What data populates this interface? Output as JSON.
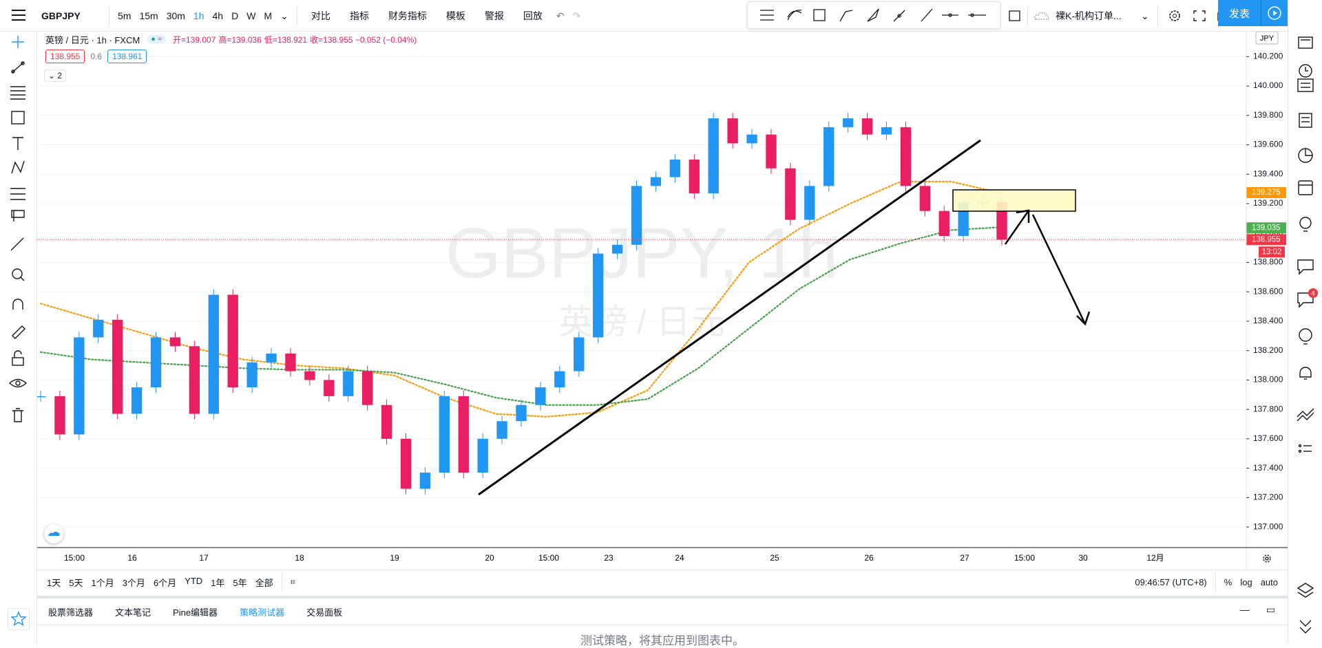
{
  "top_toolbar": {
    "symbol": "GBPJPY",
    "intervals": [
      "5m",
      "15m",
      "30m",
      "1h",
      "4h",
      "D",
      "W",
      "M"
    ],
    "items": [
      "对比",
      "指标",
      "财务指标",
      "模板",
      "警报",
      "回放"
    ],
    "layout_name": "裸K-机构订单...",
    "publish": "发表"
  },
  "legend": {
    "symbol": "英镑 / 日元 · 1h · FXCM",
    "ohlc": [
      "开=139.007",
      "高=139.036",
      "低=138.921",
      "收=138.955 −0.052 (−0.04%)"
    ],
    "bid": "138.955",
    "spread": "0.6",
    "ask": "138.961",
    "collapse": "2"
  },
  "watermark": {
    "line1": "GBPJPY, 1h",
    "line2": "英镑 / 日元"
  },
  "chart_data": {
    "type": "candlestick",
    "currency": "JPY",
    "up_color": "#2196f3",
    "down_color": "#e91e63",
    "closes": [
      137.89,
      137.63,
      138.29,
      138.41,
      137.77,
      137.95,
      138.29,
      138.23,
      137.77,
      138.58,
      137.95,
      138.12,
      138.18,
      138.06,
      138.0,
      137.89,
      138.06,
      137.83,
      137.6,
      137.26,
      137.37,
      137.89,
      137.37,
      137.6,
      137.72,
      137.83,
      137.95,
      138.06,
      138.29,
      138.86,
      138.92,
      139.32,
      139.38,
      139.5,
      139.27,
      139.78,
      139.61,
      139.67,
      139.44,
      139.09,
      139.32,
      139.72,
      139.78,
      139.67,
      139.72,
      139.32,
      139.15,
      138.98,
      139.21,
      139.21,
      138.955
    ],
    "series": [
      {
        "name": "MA fast",
        "color": "#ff9800",
        "values": [
          138.52,
          138.42,
          138.32,
          138.22,
          138.14,
          138.1,
          138.08,
          138.03,
          137.88,
          137.77,
          137.75,
          137.78,
          137.93,
          138.35,
          138.8,
          139.03,
          139.2,
          139.35,
          139.35,
          139.27
        ]
      },
      {
        "name": "MA slow",
        "color": "#43a047",
        "values": [
          138.19,
          138.14,
          138.12,
          138.1,
          138.08,
          138.07,
          138.07,
          138.05,
          137.97,
          137.88,
          137.83,
          137.83,
          137.87,
          138.08,
          138.35,
          138.62,
          138.82,
          138.93,
          139.02,
          139.04
        ]
      }
    ],
    "ylim": [
      136.86,
      140.37
    ],
    "yticks": [
      {
        "value": 137.0,
        "label": "137.000"
      },
      {
        "value": 137.2,
        "label": "137.200"
      },
      {
        "value": 137.4,
        "label": "137.400"
      },
      {
        "value": 137.6,
        "label": "137.600"
      },
      {
        "value": 137.8,
        "label": "137.800"
      },
      {
        "value": 138.0,
        "label": "138.000"
      },
      {
        "value": 138.2,
        "label": "138.200"
      },
      {
        "value": 138.4,
        "label": "138.400"
      },
      {
        "value": 138.6,
        "label": "138.600"
      },
      {
        "value": 138.8,
        "label": "138.800"
      },
      {
        "value": 139.0,
        "label": "139.000"
      },
      {
        "value": 139.2,
        "label": "139.200"
      },
      {
        "value": 139.4,
        "label": "139.400"
      },
      {
        "value": 139.6,
        "label": "139.600"
      },
      {
        "value": 139.8,
        "label": "139.800"
      },
      {
        "value": 140.0,
        "label": "140.000"
      },
      {
        "value": 140.2,
        "label": "140.200"
      }
    ],
    "price_labels": [
      {
        "value": 139.275,
        "color": "#ff9800"
      },
      {
        "value": 139.035,
        "color": "#4caf50"
      },
      {
        "value": 138.955,
        "color": "#f23645"
      }
    ],
    "countdown": "13:02",
    "time_labels": [
      "15:00",
      "16",
      "17",
      "18",
      "19",
      "20",
      "15:00",
      "23",
      "24",
      "25",
      "26",
      "27",
      "15:00",
      "30",
      "12月"
    ]
  },
  "range_bar": {
    "ranges": [
      "1天",
      "5天",
      "1个月",
      "3个月",
      "6个月",
      "YTD",
      "1年",
      "5年",
      "全部"
    ],
    "clock": "09:46:57 (UTC+8)",
    "options": [
      "%",
      "log",
      "auto"
    ]
  },
  "bottom_panel": {
    "tabs": [
      "股票筛选器",
      "文本笔记",
      "Pine编辑器",
      "策略测试器",
      "交易面板"
    ],
    "message": "测试策略，将其应用到图表中。"
  },
  "notification_badge": "4"
}
